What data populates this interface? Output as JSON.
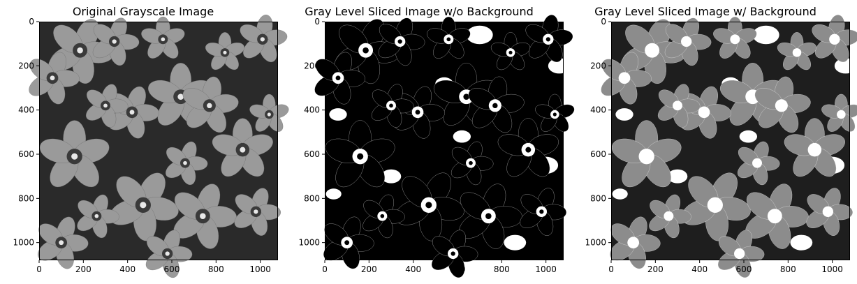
{
  "figure": {
    "panels": [
      {
        "title": "Original Grayscale Image",
        "variant": "original"
      },
      {
        "title": "Gray Level Sliced Image w/o Background",
        "variant": "sliced_no_bg"
      },
      {
        "title": "Gray Level Sliced Image w/ Background",
        "variant": "sliced_with_bg"
      }
    ],
    "x_ticks": [
      "0",
      "200",
      "400",
      "600",
      "800",
      "1000"
    ],
    "y_ticks": [
      "0",
      "200",
      "400",
      "600",
      "800",
      "1000"
    ],
    "x_tick_values": [
      0,
      200,
      400,
      600,
      800,
      1000
    ],
    "y_tick_values": [
      0,
      200,
      400,
      600,
      800,
      1000
    ],
    "extent": [
      0,
      1080
    ]
  }
}
